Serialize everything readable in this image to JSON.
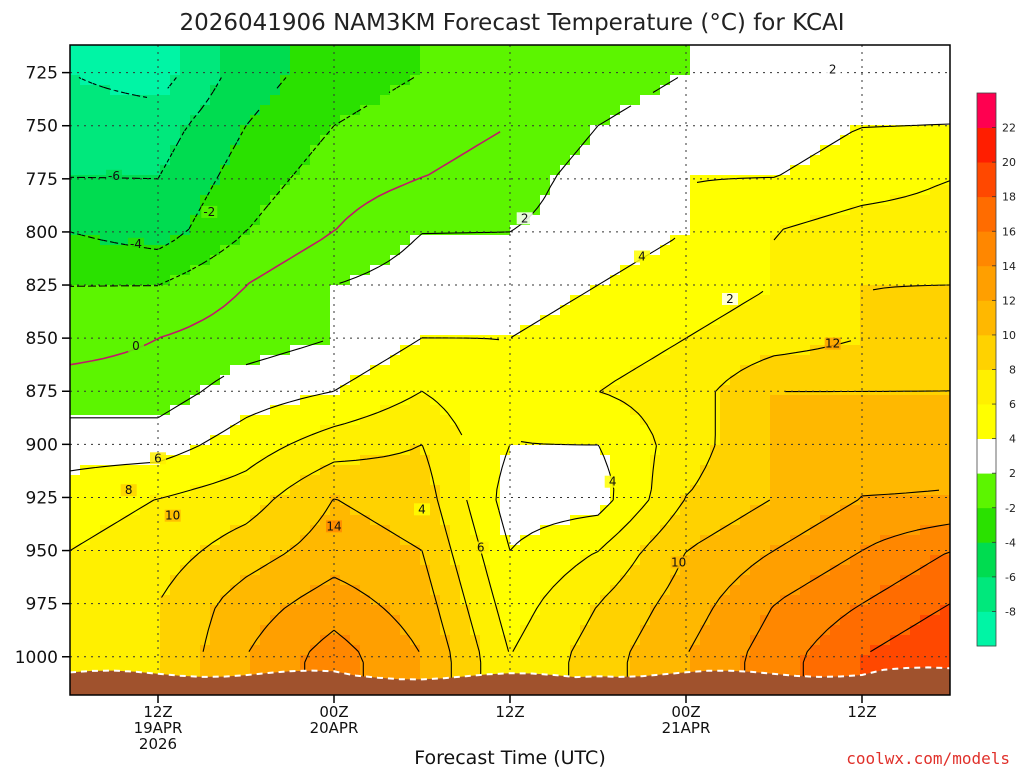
{
  "chart_data": {
    "type": "heatmap",
    "title": "2026041906 NAM3KM Forecast Temperature (°C) for KCAI",
    "xlabel": "Forecast Time (UTC)",
    "ylabel": "",
    "y_ticks": [
      "725",
      "750",
      "775",
      "800",
      "825",
      "850",
      "875",
      "900",
      "925",
      "950",
      "975",
      "1000"
    ],
    "y_range_hPa": [
      712,
      1018
    ],
    "y_inverted": true,
    "x_ticks": [
      {
        "hour": 0,
        "line1": "12Z",
        "line2": "19APR",
        "line3": "2026"
      },
      {
        "hour": 12,
        "line1": "00Z",
        "line2": "20APR",
        "line3": ""
      },
      {
        "hour": 24,
        "line1": "12Z",
        "line2": "",
        "line3": ""
      },
      {
        "hour": 36,
        "line1": "00Z",
        "line2": "21APR",
        "line3": ""
      },
      {
        "hour": 48,
        "line1": "12Z",
        "line2": "",
        "line3": ""
      }
    ],
    "x_range_hours": [
      -6,
      54
    ],
    "grid": true,
    "colorbar": {
      "levels": [
        -10,
        -8,
        -6,
        -4,
        -2,
        2,
        4,
        6,
        8,
        10,
        12,
        14,
        16,
        18,
        20,
        22,
        24
      ],
      "labels": [
        "-8",
        "-6",
        "-4",
        "-2",
        "2",
        "4",
        "6",
        "8",
        "10",
        "12",
        "14",
        "16",
        "18",
        "20",
        "22"
      ],
      "colors": [
        "#00f5a5",
        "#00e87c",
        "#00dc50",
        "#2ae100",
        "#5cf500",
        "#ffffff",
        "#ffff00",
        "#fff000",
        "#ffd200",
        "#ffb800",
        "#ff9f00",
        "#ff8700",
        "#ff6c00",
        "#ff4800",
        "#ff1e00",
        "#ff0050"
      ]
    },
    "pressure_levels_hPa": [
      725,
      750,
      775,
      800,
      825,
      850,
      875,
      900,
      925,
      950,
      975,
      1000
    ],
    "times_hours": [
      -6,
      0,
      6,
      12,
      18,
      24,
      30,
      36,
      42,
      48,
      54
    ],
    "temperature_C": [
      [
        -8,
        -9,
        -5,
        -3,
        -2,
        0,
        1,
        2,
        2,
        2,
        3
      ],
      [
        -7,
        -7,
        -4,
        -2,
        -1,
        0,
        2,
        3,
        3,
        4,
        4
      ],
      [
        -6,
        -6,
        -3,
        -1,
        0,
        1,
        3,
        4,
        4,
        5,
        6
      ],
      [
        -4,
        -5,
        -2,
        0,
        2,
        2,
        3,
        4,
        6,
        7,
        7
      ],
      [
        -2,
        -2,
        0,
        2,
        3,
        3,
        4,
        5,
        6,
        8,
        8
      ],
      [
        -1,
        0,
        1,
        2,
        4,
        4,
        5,
        6,
        7,
        8,
        9
      ],
      [
        1,
        1,
        3,
        4,
        6,
        4,
        6,
        7,
        10,
        10,
        10
      ],
      [
        3,
        3,
        5,
        7,
        8,
        4,
        4,
        7,
        10,
        11,
        12
      ],
      [
        5,
        6,
        7,
        10,
        9,
        3,
        3,
        8,
        10,
        12,
        12
      ],
      [
        6,
        7,
        9,
        11,
        10,
        4,
        6,
        10,
        12,
        14,
        16
      ],
      [
        7,
        8,
        11,
        13,
        11,
        5,
        8,
        11,
        14,
        16,
        18
      ],
      [
        7,
        8,
        12,
        15,
        12,
        6,
        9,
        12,
        15,
        18,
        20
      ]
    ],
    "contour_labels": [
      "2",
      "-2",
      "0",
      "-4",
      "-6",
      "2",
      "4",
      "6",
      "8",
      "10",
      "12",
      "14",
      "2",
      "4",
      "6",
      "10",
      "4"
    ],
    "surface": "terrain below ~1008 hPa"
  },
  "credit": "coolwx.com/models"
}
